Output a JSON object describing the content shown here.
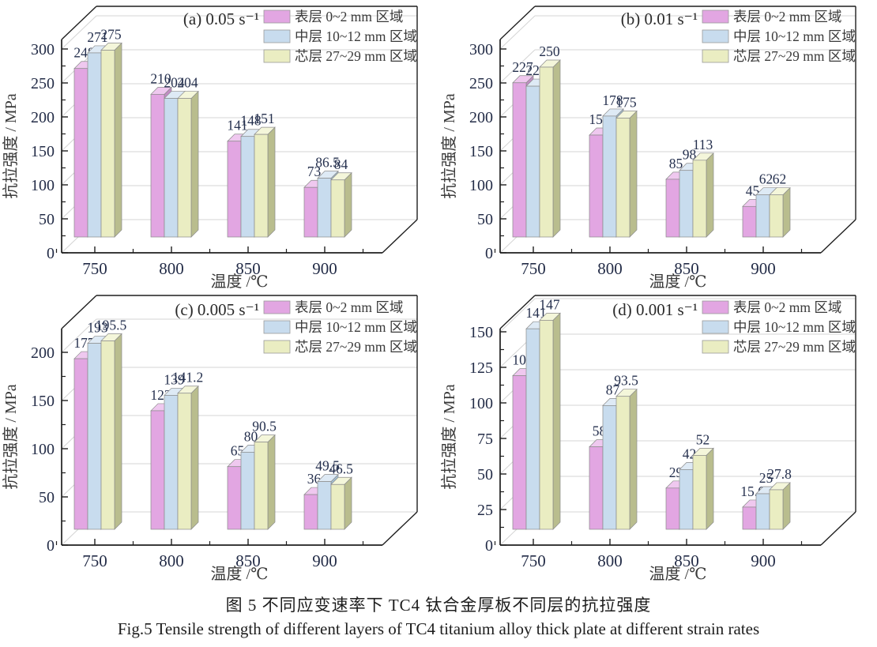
{
  "figure": {
    "caption_zh": "图 5  不同应变速率下 TC4 钛合金厚板不同层的抗拉强度",
    "caption_en": "Fig.5  Tensile strength of different layers of TC4 titanium alloy thick plate at different strain rates"
  },
  "colors": {
    "background": "#ffffff",
    "frame": "#1f1f1f",
    "grid": "#d4d4d4",
    "tick_text": "#232c47",
    "series": [
      {
        "name": "surface-layer",
        "front": "#e2a6e2",
        "top": "#efc8ef",
        "side": "#c18cc3"
      },
      {
        "name": "middle-layer",
        "front": "#c8dcee",
        "top": "#deeaf5",
        "side": "#a2bfd3"
      },
      {
        "name": "core-layer",
        "front": "#eaedc2",
        "top": "#f4f6da",
        "side": "#b9bd8e"
      }
    ]
  },
  "chart_data": [
    {
      "type": "bar",
      "panel_label": "(a) 0.05 s⁻¹",
      "xlabel": "温度 /℃",
      "ylabel": "抗拉强度 / MPa",
      "categories": [
        "750",
        "800",
        "850",
        "900"
      ],
      "series": [
        {
          "name": "表层 0~2 mm 区域",
          "values": [
            248,
            210,
            141,
            73
          ]
        },
        {
          "name": "中层 10~12 mm 区域",
          "values": [
            271,
            204,
            148,
            86.5
          ]
        },
        {
          "name": "芯层 27~29 mm 区域",
          "values": [
            275,
            204,
            151,
            84
          ]
        }
      ],
      "yticks": [
        0,
        50,
        100,
        150,
        200,
        250,
        300
      ],
      "ylim": [
        0,
        300
      ],
      "grid": true,
      "legend_position": "top-right"
    },
    {
      "type": "bar",
      "panel_label": "(b) 0.01 s⁻¹",
      "xlabel": "温度 /℃",
      "ylabel": "抗拉强度 / MPa",
      "categories": [
        "750",
        "800",
        "850",
        "900"
      ],
      "series": [
        {
          "name": "表层 0~2 mm 区域",
          "values": [
            227,
            150,
            85,
            45
          ]
        },
        {
          "name": "中层 10~12 mm 区域",
          "values": [
            222,
            178,
            98,
            62
          ]
        },
        {
          "name": "芯层 27~29 mm 区域",
          "values": [
            250,
            175,
            113,
            62
          ]
        }
      ],
      "yticks": [
        0,
        50,
        100,
        150,
        200,
        250,
        300
      ],
      "ylim": [
        0,
        300
      ],
      "grid": true,
      "legend_position": "top-right"
    },
    {
      "type": "bar",
      "panel_label": "(c) 0.005 s⁻¹",
      "xlabel": "温度 /℃",
      "ylabel": "抗拉强度 / MPa",
      "categories": [
        "750",
        "800",
        "850",
        "900"
      ],
      "series": [
        {
          "name": "表层 0~2 mm 区域",
          "values": [
            177,
            123,
            65,
            36
          ]
        },
        {
          "name": "中层 10~12 mm 区域",
          "values": [
            193,
            139,
            80,
            49.5
          ]
        },
        {
          "name": "芯层 27~29 mm 区域",
          "values": [
            195.5,
            141.2,
            90.5,
            46.5
          ]
        }
      ],
      "yticks": [
        0,
        50,
        100,
        150,
        200
      ],
      "ylim": [
        0,
        200
      ],
      "grid": true,
      "legend_position": "top-right"
    },
    {
      "type": "bar",
      "panel_label": "(d) 0.001 s⁻¹",
      "xlabel": "温度 /℃",
      "ylabel": "抗拉强度 / MPa",
      "categories": [
        "750",
        "800",
        "850",
        "900"
      ],
      "series": [
        {
          "name": "表层 0~2 mm 区域",
          "values": [
            108,
            58,
            29,
            15.6
          ]
        },
        {
          "name": "中层 10~12 mm 区域",
          "values": [
            141,
            87,
            42,
            25
          ]
        },
        {
          "name": "芯层 27~29 mm 区域",
          "values": [
            147,
            93.5,
            52,
            27.8
          ]
        }
      ],
      "yticks": [
        0,
        25,
        50,
        75,
        100,
        125,
        150
      ],
      "ylim": [
        0,
        150
      ],
      "grid": true,
      "legend_position": "top-right"
    }
  ]
}
